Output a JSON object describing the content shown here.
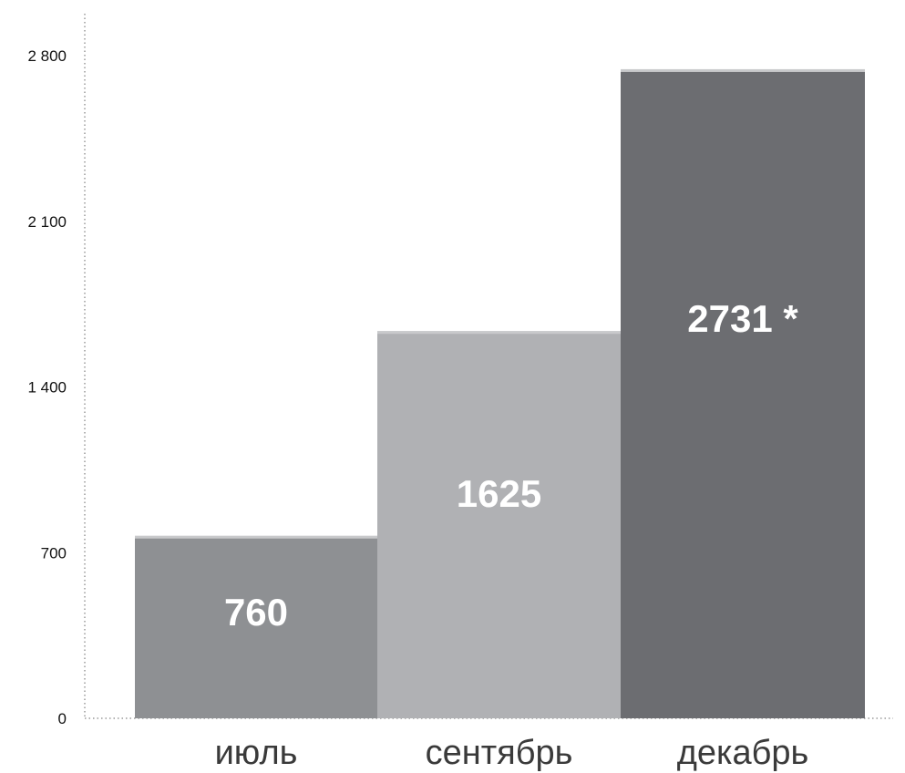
{
  "chart_data": {
    "type": "bar",
    "categories": [
      "июль",
      "сентябрь",
      "декабрь"
    ],
    "values": [
      760,
      1625,
      2731
    ],
    "value_labels": [
      "760",
      "1625",
      "2731 *"
    ],
    "y_ticks": [
      0,
      700,
      1400,
      2100,
      2800
    ],
    "y_tick_labels": [
      "0",
      "700",
      "1 400",
      "2 100",
      "2 800"
    ],
    "ylim": [
      0,
      2800
    ],
    "grid": false,
    "title": "",
    "xlabel": "",
    "ylabel": "",
    "colors": [
      "#8e9093",
      "#b0b1b4",
      "#6c6d71"
    ],
    "label_color": "#ffffff",
    "axis_color": "#9a9a9a"
  }
}
